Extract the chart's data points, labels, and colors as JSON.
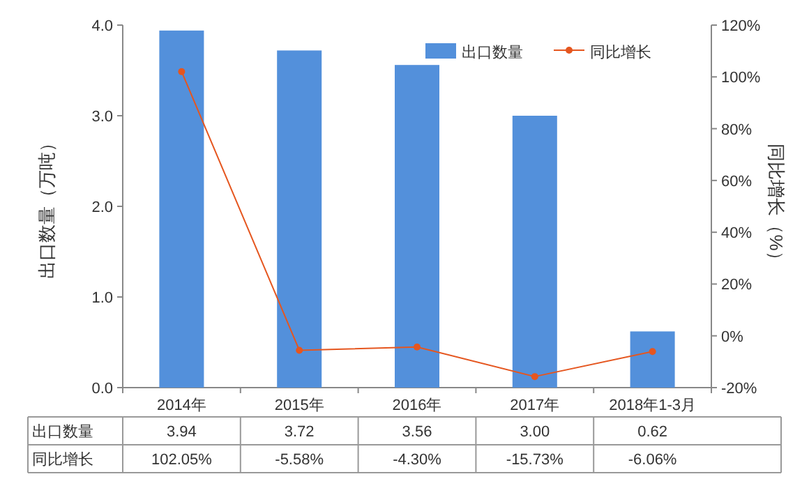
{
  "chart_data": {
    "type": "bar",
    "ylabel": "出口数量（万吨）",
    "y2label": "同比增长（%）",
    "categories": [
      "2014年",
      "2015年",
      "2016年",
      "2017年",
      "2018年1-3月"
    ],
    "series": [
      {
        "name": "出口数量",
        "color": "#5390db",
        "values": [
          3.94,
          3.72,
          3.56,
          3.0,
          0.62
        ],
        "value_labels": [
          "3.94",
          "3.72",
          "3.56",
          "3.00",
          "0.62"
        ]
      },
      {
        "name": "同比增长",
        "type": "line",
        "axis": "y2",
        "color": "#e5561f",
        "marker": "circle",
        "values": [
          102.05,
          -5.58,
          -4.3,
          -15.73,
          -6.06
        ],
        "value_labels": [
          "102.05%",
          "-5.58%",
          "-4.30%",
          "-15.73%",
          "-6.06%"
        ]
      }
    ],
    "ylim": [
      0,
      4
    ],
    "yticks": [
      {
        "value": 0,
        "label": "0.0"
      },
      {
        "value": 1,
        "label": "1.0"
      },
      {
        "value": 2,
        "label": "2.0"
      },
      {
        "value": 3,
        "label": "3.0"
      },
      {
        "value": 4,
        "label": "4.0"
      }
    ],
    "y2lim": [
      -20,
      120
    ],
    "y2ticks": [
      {
        "value": -20,
        "label": "-20%"
      },
      {
        "value": 0,
        "label": "0%"
      },
      {
        "value": 20,
        "label": "20%"
      },
      {
        "value": 40,
        "label": "40%"
      },
      {
        "value": 60,
        "label": "60%"
      },
      {
        "value": 80,
        "label": "80%"
      },
      {
        "value": 100,
        "label": "100%"
      },
      {
        "value": 120,
        "label": "120%"
      }
    ],
    "legend": "top right"
  }
}
